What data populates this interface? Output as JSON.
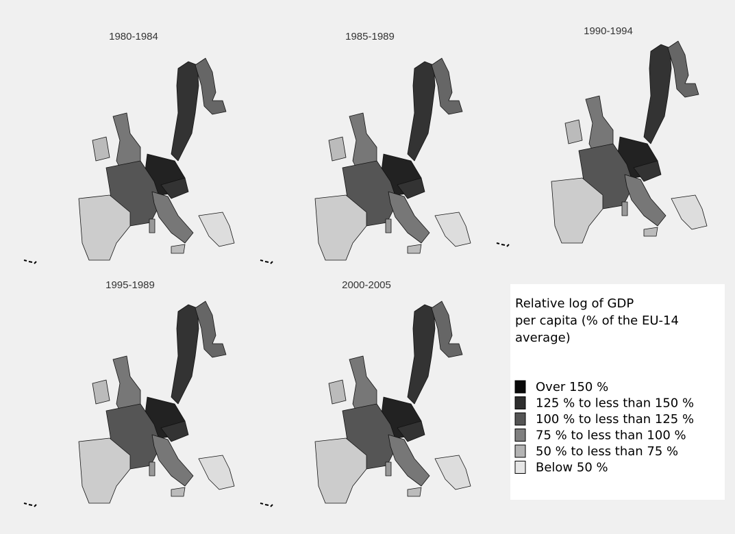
{
  "panels": [
    {
      "title": "1980-1984"
    },
    {
      "title": "1985-1989"
    },
    {
      "title": "1990-1994"
    },
    {
      "title": "1995-1989"
    },
    {
      "title": "2000-2005"
    }
  ],
  "legend": {
    "title": [
      "Relative log of GDP",
      "per capita (% of the EU-14",
      "average)"
    ],
    "items": [
      {
        "label": "Over 150 %",
        "color": "#0a0a0a"
      },
      {
        "label": "125 % to less than 150 %",
        "color": "#2e2e2e"
      },
      {
        "label": "100 % to less than 125 %",
        "color": "#555555"
      },
      {
        "label": "75 % to less than 100 %",
        "color": "#808080"
      },
      {
        "label": "50 % to less than 75 %",
        "color": "#b4b4b4"
      },
      {
        "label": "Below 50 %",
        "color": "#e6e6e6"
      }
    ]
  }
}
